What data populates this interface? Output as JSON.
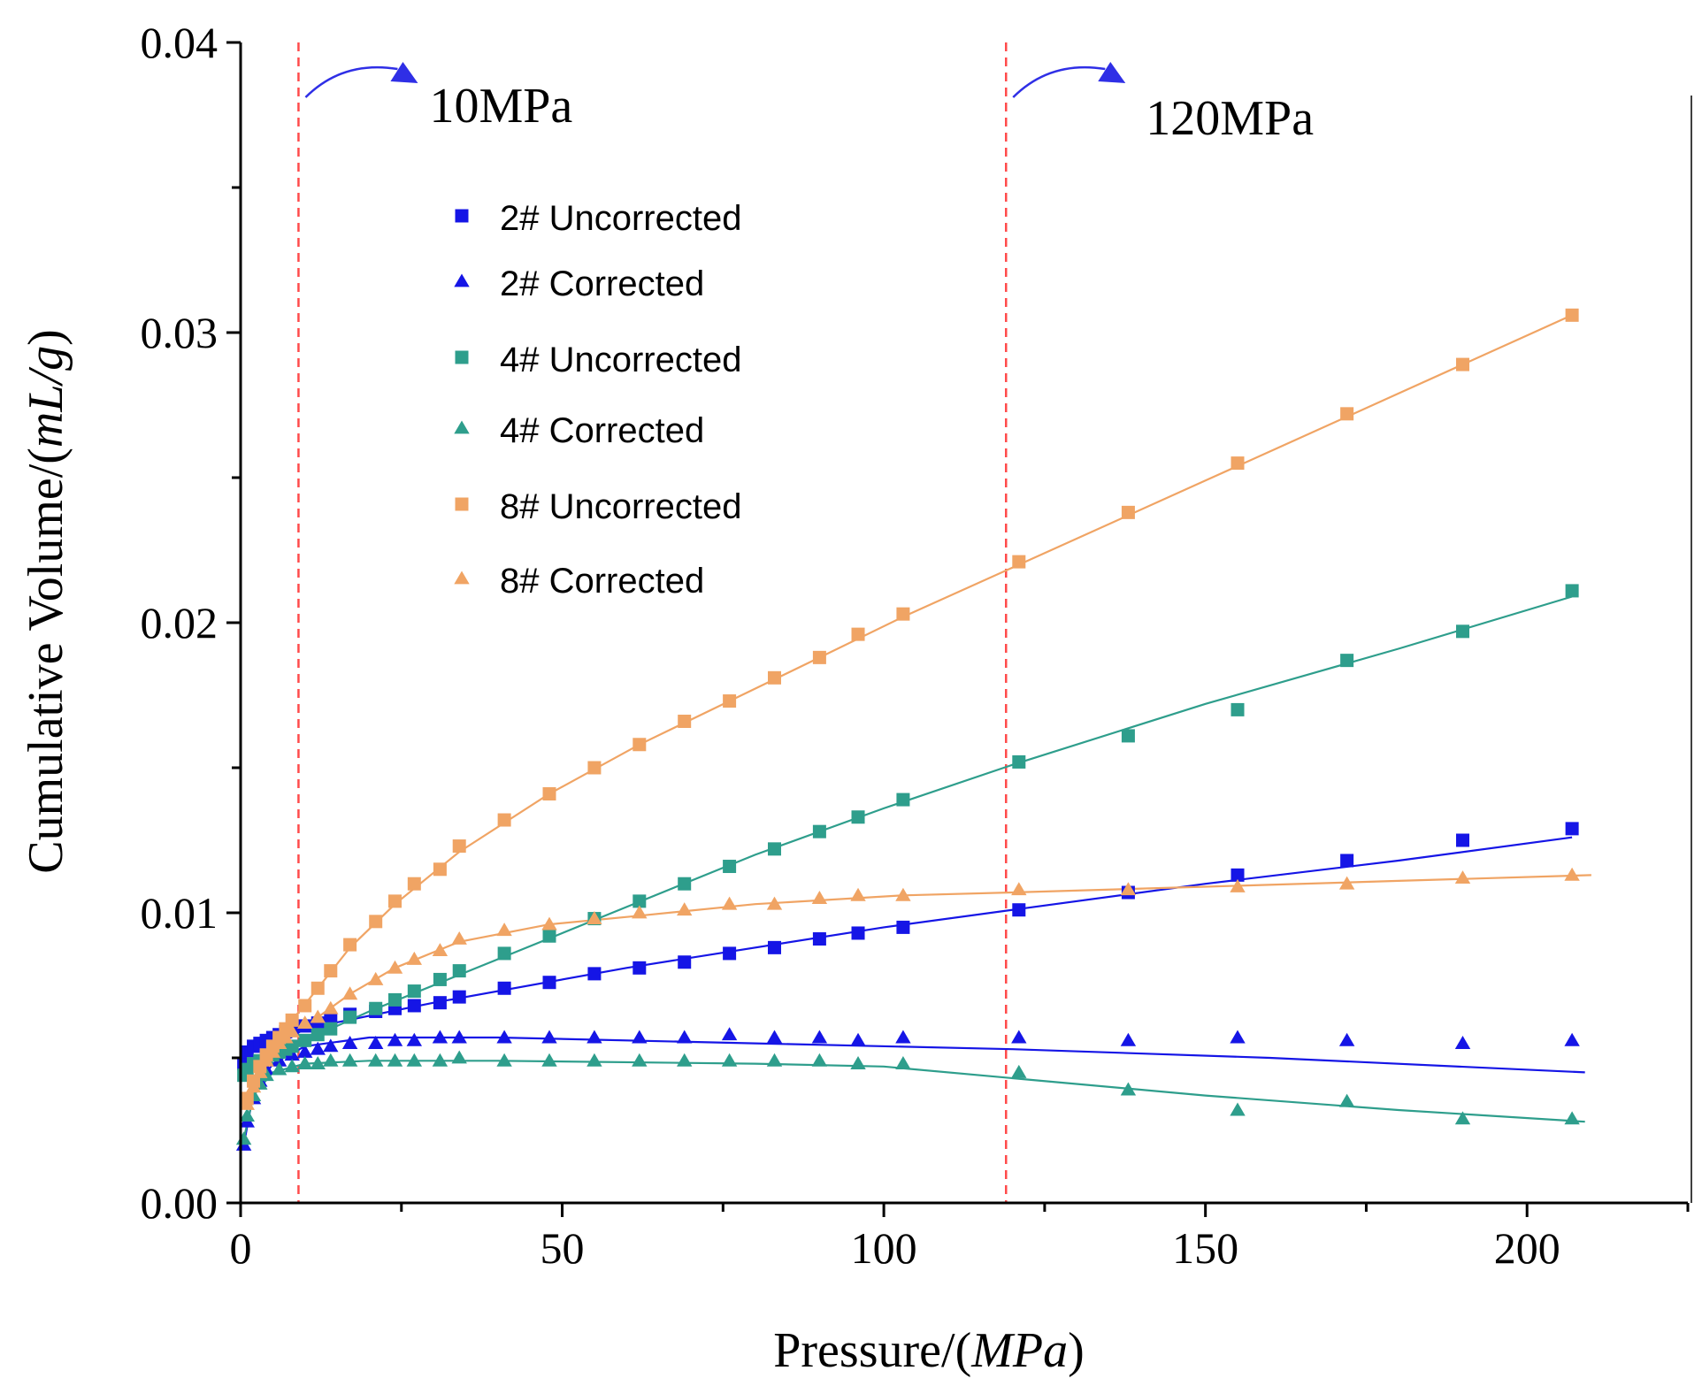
{
  "chart_data": {
    "type": "scatter",
    "xlabel": "Pressure/(",
    "xlabel_italic": "MPa",
    "xlabel_close": ")",
    "ylabel": "Cumulative Volume/(",
    "ylabel_italic": "mL/g",
    "ylabel_close": ")",
    "xlim": [
      0,
      225
    ],
    "ylim": [
      0,
      0.04
    ],
    "xticks": [
      0,
      50,
      100,
      150,
      200
    ],
    "xtick_labels": [
      "0",
      "50",
      "100",
      "150",
      "200"
    ],
    "yticks": [
      0,
      0.01,
      0.02,
      0.03,
      0.04
    ],
    "ytick_labels": [
      "0.00",
      "0.01",
      "0.02",
      "0.03",
      "0.04"
    ],
    "grid": false,
    "legend_position": "upper-left",
    "annotations": [
      {
        "x": 9,
        "label": "10MPa"
      },
      {
        "x": 119,
        "label": "120MPa"
      }
    ],
    "series": [
      {
        "name": "2# Uncorrected",
        "marker": "square",
        "color": "#1515e6",
        "x": [
          0.5,
          1,
          2,
          3,
          4,
          5,
          6,
          7,
          8,
          10,
          12,
          14,
          17,
          21,
          24,
          27,
          31,
          34,
          41,
          48,
          55,
          62,
          69,
          76,
          83,
          90,
          96,
          103,
          121,
          138,
          155,
          172,
          190,
          207
        ],
        "y": [
          0.0048,
          0.0052,
          0.0054,
          0.0055,
          0.0056,
          0.0057,
          0.0058,
          0.0059,
          0.006,
          0.0061,
          0.0062,
          0.0063,
          0.0065,
          0.0066,
          0.0067,
          0.0068,
          0.0069,
          0.0071,
          0.0074,
          0.0076,
          0.0079,
          0.0081,
          0.0083,
          0.0086,
          0.0088,
          0.0091,
          0.0093,
          0.0095,
          0.0101,
          0.0107,
          0.0113,
          0.0118,
          0.0125,
          0.0129
        ],
        "fit_x": [
          0,
          10,
          30,
          60,
          100,
          120,
          150,
          180,
          207
        ],
        "fit_y": [
          0.0047,
          0.006,
          0.0069,
          0.0081,
          0.0095,
          0.0101,
          0.011,
          0.0118,
          0.0126
        ]
      },
      {
        "name": "2# Corrected",
        "marker": "triangle",
        "color": "#1515e6",
        "x": [
          0.5,
          1,
          2,
          3,
          4,
          6,
          8,
          10,
          12,
          14,
          17,
          21,
          24,
          27,
          31,
          34,
          41,
          48,
          55,
          62,
          69,
          76,
          83,
          90,
          96,
          103,
          121,
          138,
          155,
          172,
          190,
          207
        ],
        "y": [
          0.002,
          0.0028,
          0.0036,
          0.0042,
          0.0046,
          0.0049,
          0.0051,
          0.0052,
          0.0053,
          0.0054,
          0.0055,
          0.0055,
          0.0056,
          0.0056,
          0.0057,
          0.0057,
          0.0057,
          0.0057,
          0.0057,
          0.0057,
          0.0057,
          0.0058,
          0.0057,
          0.0057,
          0.0056,
          0.0057,
          0.0057,
          0.0056,
          0.0057,
          0.0056,
          0.0055,
          0.0056
        ],
        "fit_x": [
          0.5,
          2,
          5,
          10,
          20,
          40,
          80,
          120,
          160,
          209
        ],
        "fit_y": [
          0.002,
          0.0038,
          0.0048,
          0.0054,
          0.0057,
          0.0057,
          0.0055,
          0.0053,
          0.005,
          0.0045
        ]
      },
      {
        "name": "4# Uncorrected",
        "marker": "square",
        "color": "#2e9e8c",
        "x": [
          0.5,
          1,
          2,
          3,
          4,
          5,
          6,
          7,
          8,
          10,
          12,
          14,
          17,
          21,
          24,
          27,
          31,
          34,
          41,
          48,
          55,
          62,
          69,
          76,
          83,
          90,
          96,
          103,
          121,
          138,
          155,
          172,
          190,
          207
        ],
        "y": [
          0.0044,
          0.0046,
          0.0048,
          0.0049,
          0.005,
          0.0051,
          0.0052,
          0.0053,
          0.0054,
          0.0056,
          0.0058,
          0.006,
          0.0064,
          0.0067,
          0.007,
          0.0073,
          0.0077,
          0.008,
          0.0086,
          0.0092,
          0.0098,
          0.0104,
          0.011,
          0.0116,
          0.0122,
          0.0128,
          0.0133,
          0.0139,
          0.0152,
          0.0161,
          0.017,
          0.0187,
          0.0197,
          0.0211
        ],
        "fit_x": [
          0,
          10,
          20,
          40,
          60,
          80,
          100,
          120,
          150,
          180,
          207
        ],
        "fit_y": [
          0.0044,
          0.0056,
          0.0066,
          0.0084,
          0.0102,
          0.012,
          0.0136,
          0.0151,
          0.0172,
          0.0191,
          0.0209
        ]
      },
      {
        "name": "4# Corrected",
        "marker": "triangle",
        "color": "#2e9e8c",
        "x": [
          0.5,
          1,
          2,
          3,
          4,
          6,
          8,
          10,
          12,
          14,
          17,
          21,
          24,
          27,
          31,
          34,
          41,
          48,
          55,
          62,
          69,
          76,
          83,
          90,
          96,
          103,
          121,
          138,
          155,
          172,
          190,
          207
        ],
        "y": [
          0.0022,
          0.003,
          0.0037,
          0.0041,
          0.0044,
          0.0046,
          0.0047,
          0.0048,
          0.0048,
          0.0049,
          0.0049,
          0.0049,
          0.0049,
          0.0049,
          0.0049,
          0.005,
          0.0049,
          0.0049,
          0.0049,
          0.0049,
          0.0049,
          0.0049,
          0.0049,
          0.0049,
          0.0048,
          0.0048,
          0.0045,
          0.0039,
          0.0032,
          0.0035,
          0.0029,
          0.0029
        ],
        "fit_x": [
          0.5,
          2,
          5,
          10,
          20,
          40,
          80,
          100,
          120,
          150,
          180,
          209
        ],
        "fit_y": [
          0.0022,
          0.0037,
          0.0045,
          0.0048,
          0.0049,
          0.0049,
          0.0048,
          0.0047,
          0.0043,
          0.0037,
          0.0032,
          0.0028
        ]
      },
      {
        "name": "8# Uncorrected",
        "marker": "square",
        "color": "#f0a464",
        "x": [
          1,
          2,
          3,
          4,
          5,
          6,
          7,
          8,
          10,
          12,
          14,
          17,
          21,
          24,
          27,
          31,
          34,
          41,
          48,
          55,
          62,
          69,
          76,
          83,
          90,
          96,
          103,
          121,
          138,
          155,
          172,
          190,
          207
        ],
        "y": [
          0.0036,
          0.0042,
          0.0047,
          0.0051,
          0.0054,
          0.0057,
          0.006,
          0.0063,
          0.0068,
          0.0074,
          0.008,
          0.0089,
          0.0097,
          0.0104,
          0.011,
          0.0115,
          0.0123,
          0.0132,
          0.0141,
          0.015,
          0.0158,
          0.0166,
          0.0173,
          0.0181,
          0.0188,
          0.0196,
          0.0203,
          0.0221,
          0.0238,
          0.0255,
          0.0272,
          0.0289,
          0.0306
        ],
        "fit_x": [
          1,
          4,
          8,
          12,
          17,
          24,
          34,
          48,
          62,
          76,
          90,
          103,
          120,
          150,
          180,
          207
        ],
        "fit_y": [
          0.0036,
          0.005,
          0.0063,
          0.0074,
          0.0088,
          0.0103,
          0.0121,
          0.0141,
          0.0158,
          0.0173,
          0.0188,
          0.0202,
          0.0219,
          0.0249,
          0.0279,
          0.0306
        ]
      },
      {
        "name": "8#  Corrected",
        "marker": "triangle",
        "color": "#f0a464",
        "x": [
          1,
          2,
          3,
          4,
          5,
          6,
          7,
          8,
          10,
          12,
          14,
          17,
          21,
          24,
          27,
          31,
          34,
          41,
          48,
          55,
          62,
          69,
          76,
          83,
          90,
          96,
          103,
          121,
          138,
          155,
          172,
          190,
          207
        ],
        "y": [
          0.0034,
          0.004,
          0.0045,
          0.0049,
          0.0052,
          0.0055,
          0.0057,
          0.0059,
          0.0062,
          0.0064,
          0.0067,
          0.0072,
          0.0077,
          0.0081,
          0.0084,
          0.0087,
          0.0091,
          0.0094,
          0.0096,
          0.0098,
          0.01,
          0.0101,
          0.0103,
          0.0103,
          0.0105,
          0.0106,
          0.0106,
          0.0108,
          0.0108,
          0.0109,
          0.011,
          0.0112,
          0.0113
        ],
        "fit_x": [
          1,
          4,
          8,
          12,
          17,
          24,
          34,
          48,
          62,
          80,
          103,
          120,
          150,
          180,
          210
        ],
        "fit_y": [
          0.0034,
          0.0049,
          0.0059,
          0.0064,
          0.0072,
          0.0081,
          0.009,
          0.0096,
          0.0099,
          0.0103,
          0.0106,
          0.0107,
          0.0109,
          0.0111,
          0.0113
        ]
      }
    ]
  }
}
